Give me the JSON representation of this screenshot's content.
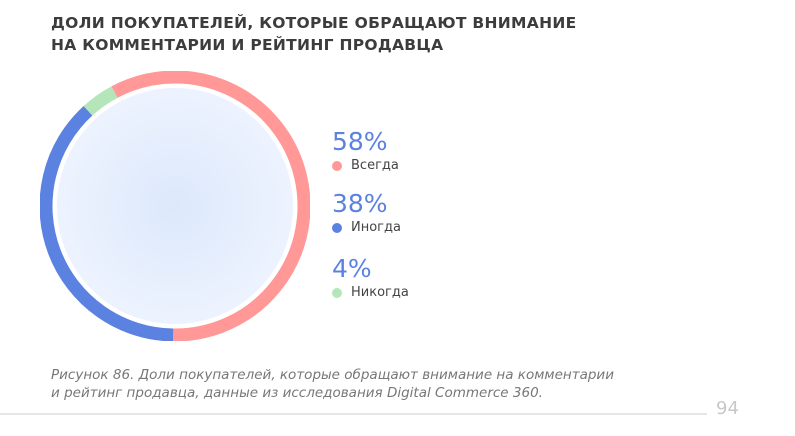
{
  "title_lines": [
    "ДОЛИ ПОКУПАТЕЛЕЙ, КОТОРЫЕ ОБРАЩАЮТ ВНИМАНИЕ",
    "НА КОММЕНТАРИИ И РЕЙТИНГ ПРОДАВЦА"
  ],
  "chart_data": {
    "type": "pie",
    "title": "ДОЛИ ПОКУПАТЕЛЕЙ, КОТОРЫЕ ОБРАЩАЮТ ВНИМАНИЕ НА КОММЕНТАРИИ И РЕЙТИНГ ПРОДАВЦА",
    "donut": true,
    "start_angle_deg": -28,
    "legend_position": "right",
    "slices": [
      {
        "label": "Всегда",
        "value": 58,
        "display": "58%",
        "color": "#ff9896"
      },
      {
        "label": "Иногда",
        "value": 38,
        "display": "38%",
        "color": "#5b82e0"
      },
      {
        "label": "Никогда",
        "value": 4,
        "display": "4%",
        "color": "#b4e6b9"
      }
    ]
  },
  "caption_lines": [
    "Рисунок 86. Доли покупателей, которые обращают внимание на комментарии",
    "и рейтинг продавца, данные из исследования Digital Commerce 360."
  ],
  "page_number": "94"
}
